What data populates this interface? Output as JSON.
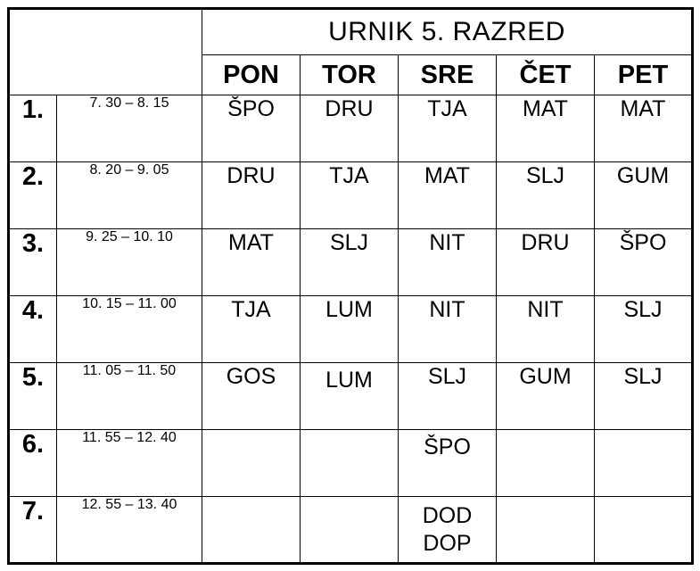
{
  "page": {
    "background_color": "#ffffff",
    "text_color": "#000000",
    "border_color": "#000000"
  },
  "timetable": {
    "title": "URNIK 5. RAZRED",
    "days": [
      "PON",
      "TOR",
      "SRE",
      "ČET",
      "PET"
    ],
    "periods": [
      {
        "num": "1.",
        "time": "7. 30 – 8. 15",
        "subjects": [
          "ŠPO",
          "DRU",
          "TJA",
          "MAT",
          "MAT"
        ]
      },
      {
        "num": "2.",
        "time": "8. 20 – 9. 05",
        "subjects": [
          "DRU",
          "TJA",
          "MAT",
          "SLJ",
          "GUM"
        ]
      },
      {
        "num": "3.",
        "time": "9. 25 – 10. 10",
        "subjects": [
          "MAT",
          "SLJ",
          "NIT",
          "DRU",
          "ŠPO"
        ]
      },
      {
        "num": "4.",
        "time": "10. 15 – 11. 00",
        "subjects": [
          "TJA",
          "LUM",
          "NIT",
          "NIT",
          "SLJ"
        ]
      },
      {
        "num": "5.",
        "time": "11. 05 – 11. 50",
        "subjects": [
          "GOS",
          "LUM",
          "SLJ",
          "GUM",
          "SLJ"
        ]
      },
      {
        "num": "6.",
        "time": "11. 55 – 12. 40",
        "subjects": [
          "",
          "",
          "ŠPO",
          "",
          ""
        ]
      },
      {
        "num": "7.",
        "time": "12. 55 – 13. 40",
        "subjects": [
          "",
          "",
          "DOD\nDOP",
          "",
          ""
        ]
      }
    ]
  }
}
